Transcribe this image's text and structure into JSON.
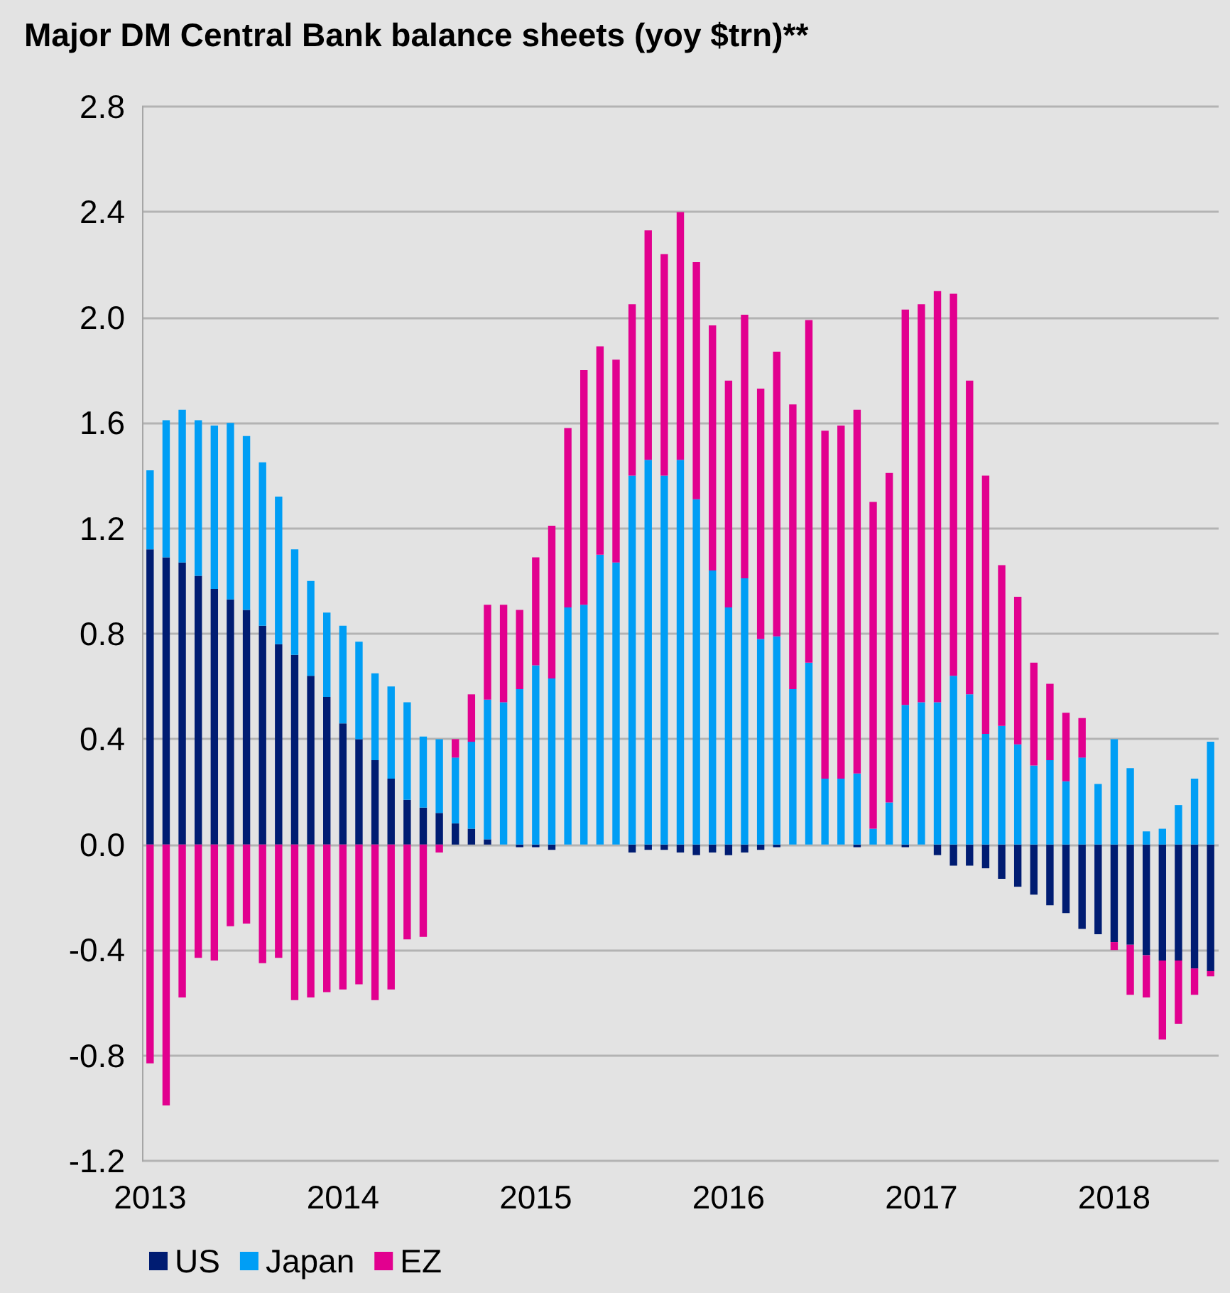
{
  "chart_data": {
    "type": "bar",
    "title": "Major DM Central Bank balance sheets (yoy $trn)**",
    "stacked": true,
    "grid": "y",
    "legend": "bottom left",
    "categories": [
      "2013",
      null,
      null,
      null,
      null,
      null,
      null,
      null,
      null,
      null,
      null,
      null,
      "2014",
      null,
      null,
      null,
      null,
      null,
      null,
      null,
      null,
      null,
      null,
      null,
      "2015",
      null,
      null,
      null,
      null,
      null,
      null,
      null,
      null,
      null,
      null,
      null,
      "2016",
      null,
      null,
      null,
      null,
      null,
      null,
      null,
      null,
      null,
      null,
      null,
      "2017",
      null,
      null,
      null,
      null,
      null,
      null,
      null,
      null,
      null,
      null,
      null,
      "2018",
      null,
      null,
      null,
      null,
      null,
      null
    ],
    "ylim": [
      -1.2,
      2.8
    ],
    "yticks": [
      {
        "value": -1.2,
        "label": "-1.2"
      },
      {
        "value": -0.8,
        "label": "-0.8"
      },
      {
        "value": -0.4,
        "label": "-0.4"
      },
      {
        "value": 0,
        "label": "0.0"
      },
      {
        "value": 0.4,
        "label": "0.4"
      },
      {
        "value": 0.8,
        "label": "0.8"
      },
      {
        "value": 1.2,
        "label": "1.2"
      },
      {
        "value": 1.6,
        "label": "1.6"
      },
      {
        "value": 2.0,
        "label": "2.0"
      },
      {
        "value": 2.4,
        "label": "2.4"
      },
      {
        "value": 2.8,
        "label": "2.8"
      }
    ],
    "series": [
      {
        "name": "US",
        "color": "#001c72",
        "values": [
          1.12,
          1.09,
          1.07,
          1.02,
          0.97,
          0.93,
          0.89,
          0.83,
          0.76,
          0.72,
          0.64,
          0.56,
          0.46,
          0.4,
          0.32,
          0.25,
          0.17,
          0.14,
          0.12,
          0.08,
          0.06,
          0.02,
          0,
          -0.01,
          -0.01,
          -0.02,
          0,
          0,
          0,
          0,
          -0.03,
          -0.02,
          -0.02,
          -0.03,
          -0.04,
          -0.03,
          -0.04,
          -0.03,
          -0.02,
          -0.01,
          0,
          0,
          0,
          0,
          -0.01,
          0,
          0,
          -0.01,
          0,
          -0.04,
          -0.08,
          -0.08,
          -0.09,
          -0.13,
          -0.16,
          -0.19,
          -0.23,
          -0.26,
          -0.32,
          -0.34,
          -0.37,
          -0.38,
          -0.42,
          -0.44,
          -0.44,
          -0.47,
          -0.48
        ]
      },
      {
        "name": "Japan",
        "color": "#009ef5",
        "values": [
          0.3,
          0.52,
          0.58,
          0.59,
          0.62,
          0.67,
          0.66,
          0.62,
          0.56,
          0.4,
          0.36,
          0.32,
          0.37,
          0.37,
          0.33,
          0.35,
          0.37,
          0.27,
          0.28,
          0.25,
          0.33,
          0.53,
          0.54,
          0.59,
          0.68,
          0.63,
          0.9,
          0.91,
          1.1,
          1.07,
          1.4,
          1.46,
          1.4,
          1.46,
          1.31,
          1.04,
          0.9,
          1.01,
          0.78,
          0.79,
          0.59,
          0.69,
          0.25,
          0.25,
          0.27,
          0.06,
          0.16,
          0.53,
          0.54,
          0.54,
          0.64,
          0.57,
          0.42,
          0.45,
          0.38,
          0.3,
          0.32,
          0.24,
          0.33,
          0.23,
          0.4,
          0.29,
          0.05,
          0.06,
          0.15,
          0.25,
          0.39
        ]
      },
      {
        "name": "EZ",
        "color": "#e2008f",
        "values": [
          -0.83,
          -0.99,
          -0.58,
          -0.43,
          -0.44,
          -0.31,
          -0.3,
          -0.45,
          -0.43,
          -0.59,
          -0.58,
          -0.56,
          -0.55,
          -0.53,
          -0.59,
          -0.55,
          -0.36,
          -0.35,
          -0.03,
          0.07,
          0.18,
          0.36,
          0.37,
          0.3,
          0.41,
          0.58,
          0.68,
          0.89,
          0.79,
          0.77,
          0.65,
          0.87,
          0.84,
          0.94,
          0.9,
          0.93,
          0.86,
          1.0,
          0.95,
          1.08,
          1.08,
          1.3,
          1.32,
          1.34,
          1.38,
          1.24,
          1.25,
          1.5,
          1.51,
          1.56,
          1.45,
          1.19,
          0.98,
          0.61,
          0.56,
          0.39,
          0.29,
          0.26,
          0.15,
          0,
          -0.03,
          -0.19,
          -0.16,
          -0.3,
          -0.24,
          -0.1,
          -0.02
        ]
      }
    ]
  }
}
